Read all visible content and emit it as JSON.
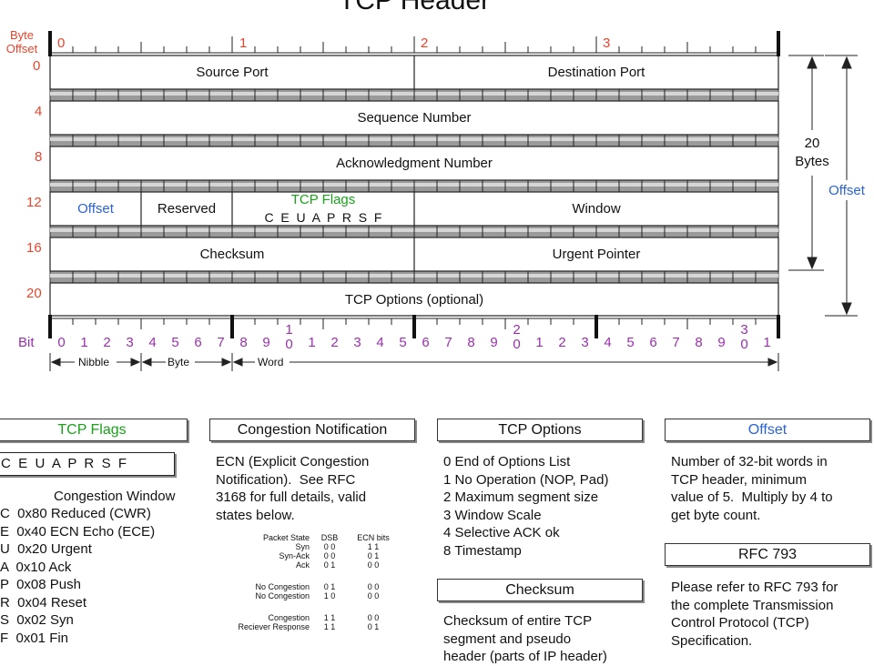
{
  "title": "TCP Header",
  "byte_offset_label": [
    "Byte",
    "Offset"
  ],
  "byte_offsets": [
    "0",
    "4",
    "8",
    "12",
    "16",
    "20"
  ],
  "byte_index": [
    "0",
    "1",
    "2",
    "3"
  ],
  "rows": {
    "r0": [
      "Source Port",
      "Destination Port"
    ],
    "r1": "Sequence Number",
    "r2": "Acknowledgment Number",
    "r3": {
      "offset": "Offset",
      "reserved": "Reserved",
      "flags_title": "TCP Flags",
      "flags": "C  E  U  A  P  R  S  F",
      "window": "Window"
    },
    "r4": [
      "Checksum",
      "Urgent Pointer"
    ],
    "r5": "TCP Options (optional)"
  },
  "side": {
    "twenty": "20",
    "bytes": "Bytes",
    "offset": "Offset"
  },
  "bit_label": "Bit",
  "bits": [
    "0",
    "1",
    "2",
    "3",
    "4",
    "5",
    "6",
    "7",
    "8",
    "9",
    "1\n0",
    "1",
    "2",
    "3",
    "4",
    "5",
    "6",
    "7",
    "8",
    "9",
    "2\n0",
    "1",
    "2",
    "3",
    "4",
    "5",
    "6",
    "7",
    "8",
    "9",
    "3\n0",
    "1"
  ],
  "ranges": {
    "nibble": "Nibble",
    "byte": "Byte",
    "word": "Word"
  },
  "flags_box": {
    "title": "TCP Flags",
    "letters": "C  E  U  A  P  R  S  F",
    "caption": "Congestion Window",
    "list": [
      "C  0x80 Reduced (CWR)",
      "E  0x40 ECN Echo (ECE)",
      "U  0x20 Urgent",
      "A  0x10 Ack",
      "P  0x08 Push",
      "R  0x04 Reset",
      "S  0x02 Syn",
      "F  0x01 Fin"
    ]
  },
  "congestion_box": {
    "title": "Congestion Notification",
    "text": "ECN (Explicit Congestion\nNotification).  See RFC\n3168 for full details, valid\nstates below.",
    "table_header": [
      "Packet State",
      "DSB",
      "ECN bits"
    ],
    "table_rows": [
      [
        "Syn",
        "0 0",
        "1 1"
      ],
      [
        "Syn-Ack",
        "0 0",
        "0 1"
      ],
      [
        "Ack",
        "0 1",
        "0 0"
      ],
      [
        "",
        "",
        ""
      ],
      [
        "No Congestion",
        "0 1",
        "0 0"
      ],
      [
        "No Congestion",
        "1 0",
        "0 0"
      ],
      [
        "",
        "",
        ""
      ],
      [
        "Congestion",
        "1 1",
        "0 0"
      ],
      [
        "Reciever Response",
        "1 1",
        "0 1"
      ]
    ]
  },
  "options_box": {
    "title": "TCP Options",
    "text": "0 End of Options List\n1 No Operation (NOP, Pad)\n2 Maximum segment size\n3 Window Scale\n4 Selective ACK ok\n8 Timestamp"
  },
  "checksum_box": {
    "title": "Checksum",
    "text": "Checksum of entire TCP\nsegment and pseudo\nheader (parts of IP header)"
  },
  "offset_box": {
    "title": "Offset",
    "text": "Number of 32-bit words in\nTCP header, minimum\nvalue of 5.  Multiply by 4 to\nget byte count."
  },
  "rfc_box": {
    "title": "RFC 793",
    "text": "Please refer to RFC 793 for\nthe complete Transmission\nControl Protocol (TCP)\nSpecification."
  },
  "colors": {
    "red": "#e8452c",
    "purple": "#9b2fae",
    "blue": "#2b62d6",
    "green": "#1aa31a"
  }
}
